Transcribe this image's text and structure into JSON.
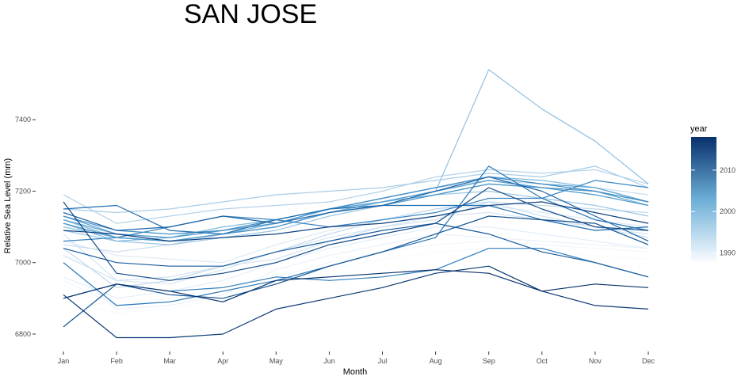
{
  "chart_data": {
    "type": "line",
    "title": "SAN JOSE",
    "xlabel": "Month",
    "ylabel": "Relative Sea Level (mm)",
    "x": [
      "Jan",
      "Feb",
      "Mar",
      "Apr",
      "May",
      "Jun",
      "Jul",
      "Aug",
      "Sep",
      "Oct",
      "Nov",
      "Dec"
    ],
    "yticks": [
      6800,
      7000,
      7200,
      7400
    ],
    "ylim": [
      6760,
      7580
    ],
    "grid": false,
    "color_scale": {
      "title": "year",
      "min": 1988,
      "max": 2018,
      "ticks": [
        1990,
        2000,
        2010
      ],
      "low_color": "#f7fbff",
      "high_color": "#08306b"
    },
    "legend_position": "right",
    "series": [
      {
        "year": 1988,
        "values": [
          6890,
          6860,
          6870,
          6900,
          6940,
          6980,
          7010,
          7030,
          7040,
          7030,
          7020,
          7010
        ]
      },
      {
        "year": 1989,
        "values": [
          6950,
          6880,
          6900,
          6930,
          6960,
          7000,
          7030,
          7050,
          7060,
          7050,
          7040,
          7030
        ]
      },
      {
        "year": 1990,
        "values": [
          7000,
          6870,
          6880,
          6910,
          6980,
          7020,
          7050,
          7080,
          7070,
          7060,
          7050,
          7040
        ]
      },
      {
        "year": 1991,
        "values": [
          6960,
          6900,
          6920,
          6950,
          7000,
          7040,
          7070,
          7100,
          7100,
          7080,
          7060,
          7040
        ]
      },
      {
        "year": 1992,
        "values": [
          7060,
          7020,
          7010,
          7000,
          7050,
          7090,
          7120,
          7150,
          7160,
          7140,
          7120,
          7100
        ]
      },
      {
        "year": 1993,
        "values": [
          7080,
          6950,
          6940,
          6980,
          7030,
          7070,
          7100,
          7130,
          7140,
          7120,
          7100,
          7080
        ]
      },
      {
        "year": 1994,
        "values": [
          7020,
          6950,
          6960,
          6990,
          7010,
          7060,
          7100,
          7120,
          7170,
          7130,
          7100,
          7070
        ]
      },
      {
        "year": 1995,
        "values": [
          7050,
          7030,
          7050,
          7080,
          7110,
          7150,
          7180,
          7210,
          7230,
          7220,
          7210,
          7190
        ]
      },
      {
        "year": 1996,
        "values": [
          7040,
          6930,
          6950,
          6990,
          7030,
          7080,
          7120,
          7150,
          7170,
          7160,
          7150,
          7140
        ]
      },
      {
        "year": 1997,
        "values": [
          7190,
          7110,
          7130,
          7150,
          7160,
          7170,
          7200,
          7240,
          7260,
          7250,
          7260,
          7220
        ]
      },
      {
        "year": 1998,
        "values": [
          7150,
          7140,
          7150,
          7170,
          7190,
          7200,
          7210,
          7230,
          7250,
          7240,
          7270,
          7210
        ]
      },
      {
        "year": 1999,
        "values": [
          7090,
          7060,
          7050,
          7070,
          7090,
          7130,
          7160,
          7190,
          7200,
          7180,
          7160,
          7130
        ]
      },
      {
        "year": 2000,
        "values": [
          7100,
          7070,
          7060,
          7080,
          7100,
          7140,
          7170,
          7200,
          7540,
          7430,
          7340,
          7220
        ]
      },
      {
        "year": 2001,
        "values": [
          7110,
          7060,
          7070,
          7100,
          7120,
          7150,
          7180,
          7210,
          7240,
          7230,
          7210,
          7170
        ]
      },
      {
        "year": 2002,
        "values": [
          7120,
          7070,
          7060,
          7080,
          7110,
          7150,
          7170,
          7200,
          7230,
          7210,
          7200,
          7170
        ]
      },
      {
        "year": 2003,
        "values": [
          7110,
          7070,
          7060,
          7080,
          7100,
          7140,
          7170,
          7190,
          7220,
          7210,
          7200,
          7160
        ]
      },
      {
        "year": 2004,
        "values": [
          7130,
          7080,
          7070,
          7090,
          7110,
          7150,
          7180,
          7210,
          7240,
          7220,
          7210,
          7170
        ]
      },
      {
        "year": 2005,
        "values": [
          7120,
          7080,
          7070,
          7090,
          7110,
          7150,
          7170,
          7200,
          7230,
          7210,
          7200,
          7170
        ]
      },
      {
        "year": 2006,
        "values": [
          7110,
          7070,
          7060,
          7080,
          7100,
          7140,
          7160,
          7190,
          7220,
          7210,
          7190,
          7160
        ]
      },
      {
        "year": 2007,
        "values": [
          7130,
          7090,
          7080,
          7090,
          7120,
          7150,
          7180,
          7210,
          7240,
          7220,
          7200,
          7170
        ]
      },
      {
        "year": 2008,
        "values": [
          7060,
          7070,
          7100,
          7130,
          7120,
          7100,
          7120,
          7140,
          7180,
          7180,
          7230,
          7210
        ]
      },
      {
        "year": 2009,
        "values": [
          6900,
          6940,
          6920,
          6930,
          6960,
          6950,
          6960,
          6980,
          7040,
          7040,
          7000,
          6960
        ]
      },
      {
        "year": 2010,
        "values": [
          7000,
          6880,
          6890,
          6920,
          6950,
          6990,
          7030,
          7070,
          7270,
          7180,
          7120,
          7090
        ]
      },
      {
        "year": 2011,
        "values": [
          7150,
          7160,
          7090,
          7080,
          7120,
          7150,
          7160,
          7160,
          7160,
          7120,
          7090,
          7100
        ]
      },
      {
        "year": 2012,
        "values": [
          7140,
          7090,
          7100,
          7130,
          7110,
          7140,
          7160,
          7200,
          7240,
          7200,
          7130,
          7060
        ]
      },
      {
        "year": 2013,
        "values": [
          7040,
          7000,
          6990,
          6990,
          7030,
          7060,
          7090,
          7110,
          7080,
          7030,
          7000,
          6960
        ]
      },
      {
        "year": 2014,
        "values": [
          6820,
          6940,
          6910,
          6900,
          6940,
          6990,
          7030,
          7080,
          7130,
          7120,
          7110,
          7050
        ]
      },
      {
        "year": 2015,
        "values": [
          7170,
          6970,
          6950,
          6970,
          7000,
          7050,
          7080,
          7110,
          7210,
          7150,
          7100,
          7090
        ]
      },
      {
        "year": 2016,
        "values": [
          7090,
          7080,
          7060,
          7070,
          7080,
          7100,
          7110,
          7130,
          7160,
          7170,
          7140,
          7110
        ]
      },
      {
        "year": 2017,
        "values": [
          6910,
          6790,
          6790,
          6800,
          6870,
          6900,
          6930,
          6970,
          6990,
          6920,
          6880,
          6870
        ]
      },
      {
        "year": 2018,
        "values": [
          6900,
          6940,
          6920,
          6890,
          6950,
          6960,
          6970,
          6980,
          6970,
          6920,
          6940,
          6930
        ]
      }
    ]
  }
}
